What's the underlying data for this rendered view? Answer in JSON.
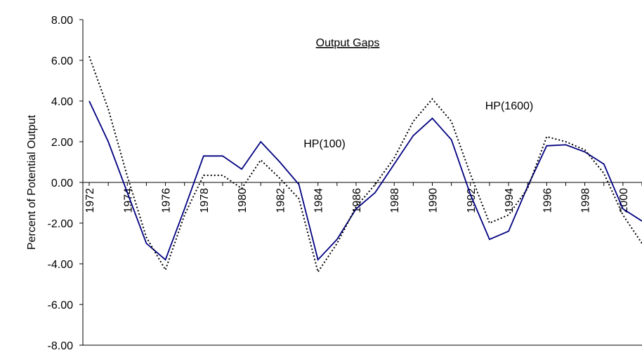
{
  "chart_data": {
    "type": "line",
    "title": "Output Gaps",
    "y_label": "Percent of Potential Output",
    "categories": [
      "1972",
      null,
      "1974",
      null,
      "1976",
      null,
      "1978",
      null,
      "1980",
      null,
      "1982",
      null,
      "1984",
      null,
      "1986",
      null,
      "1988",
      null,
      "1990",
      null,
      "1992",
      null,
      "1994",
      null,
      "1996",
      null,
      "1998",
      null,
      "2000",
      null
    ],
    "series": [
      {
        "name": "HP(100)",
        "color": "#000080",
        "style": "solid",
        "values": [
          4.0,
          2.0,
          -0.5,
          -3.0,
          -3.8,
          -1.3,
          1.3,
          1.3,
          0.65,
          2.0,
          1.0,
          -0.1,
          -3.8,
          -2.8,
          -1.3,
          -0.5,
          0.9,
          2.3,
          3.15,
          2.1,
          -0.6,
          -2.8,
          -2.4,
          -0.2,
          1.8,
          1.85,
          1.5,
          0.9,
          -1.3,
          -1.9
        ]
      },
      {
        "name": "HP(1600)",
        "color": "#000000",
        "style": "dotted",
        "values": [
          6.2,
          3.6,
          0.3,
          -2.7,
          -4.3,
          -1.6,
          0.35,
          0.35,
          -0.3,
          1.1,
          0.2,
          -0.8,
          -4.4,
          -3.0,
          -1.2,
          -0.1,
          1.2,
          3.0,
          4.1,
          3.0,
          0.4,
          -2.0,
          -1.6,
          -0.3,
          2.25,
          2.0,
          1.6,
          0.45,
          -1.6,
          -3.0
        ]
      }
    ],
    "ylim": [
      -8,
      8
    ],
    "yticks": [
      {
        "value": -8,
        "label": "-8.00"
      },
      {
        "value": -6,
        "label": "-6.00"
      },
      {
        "value": -4,
        "label": "-4.00"
      },
      {
        "value": -2,
        "label": "-2.00"
      },
      {
        "value": 0,
        "label": "0.00"
      },
      {
        "value": 2,
        "label": "2.00"
      },
      {
        "value": 4,
        "label": "4.00"
      },
      {
        "value": 6,
        "label": "6.00"
      },
      {
        "value": 8,
        "label": "8.00"
      }
    ]
  }
}
